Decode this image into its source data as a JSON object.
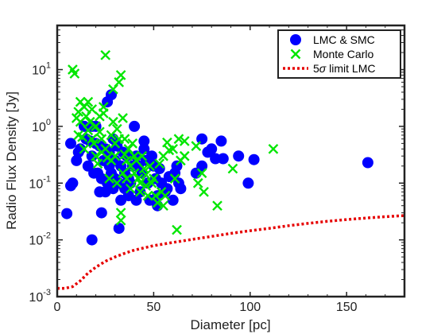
{
  "chart_data": {
    "type": "scatter",
    "xlabel": "Diameter [pc]",
    "ylabel": "Radio Flux Density [Jy]",
    "xlim": [
      0,
      180
    ],
    "ylim": [
      0.001,
      60
    ],
    "yscale": "log",
    "grid": false,
    "legend_position": "top-right",
    "x_ticks": [
      {
        "value": 0,
        "label": "0"
      },
      {
        "value": 50,
        "label": "50"
      },
      {
        "value": 100,
        "label": "100"
      },
      {
        "value": 150,
        "label": "150"
      }
    ],
    "y_ticks": [
      {
        "value": 0.001,
        "base": "10",
        "exp": "-3"
      },
      {
        "value": 0.01,
        "base": "10",
        "exp": "-2"
      },
      {
        "value": 0.1,
        "base": "10",
        "exp": "-1"
      },
      {
        "value": 1,
        "base": "10",
        "exp": "0"
      },
      {
        "value": 10,
        "base": "10",
        "exp": "1"
      }
    ],
    "legend": [
      {
        "label": "LMC & SMC",
        "marker": "circle",
        "color": "#0000ff"
      },
      {
        "label": "Monte Carlo",
        "marker": "x",
        "color": "#00e600"
      },
      {
        "label_prefix": "5",
        "label_symbol": "σ",
        "label_suffix": " limit LMC",
        "marker": "dotted-line",
        "color": "#e60000"
      }
    ],
    "series": [
      {
        "name": "LMC & SMC",
        "marker": "circle",
        "color": "#0000ff",
        "points": [
          [
            5,
            0.029
          ],
          [
            7,
            0.09
          ],
          [
            7,
            0.5
          ],
          [
            8,
            0.1
          ],
          [
            10,
            0.25
          ],
          [
            11,
            0.35
          ],
          [
            12,
            0.4
          ],
          [
            14,
            1.0
          ],
          [
            15,
            0.6
          ],
          [
            16,
            0.2
          ],
          [
            17,
            0.55
          ],
          [
            18,
            0.01
          ],
          [
            18,
            1.0
          ],
          [
            18,
            0.3
          ],
          [
            19,
            0.15
          ],
          [
            20,
            1.0
          ],
          [
            20,
            0.5
          ],
          [
            21,
            0.15
          ],
          [
            22,
            0.07
          ],
          [
            22,
            0.45
          ],
          [
            23,
            0.03
          ],
          [
            23,
            0.12
          ],
          [
            24,
            0.25
          ],
          [
            25,
            0.07
          ],
          [
            25,
            0.4
          ],
          [
            26,
            0.1
          ],
          [
            26,
            2.7
          ],
          [
            27,
            0.2
          ],
          [
            27,
            0.35
          ],
          [
            28,
            3.6
          ],
          [
            28,
            0.15
          ],
          [
            29,
            0.08
          ],
          [
            29,
            0.6
          ],
          [
            30,
            0.12
          ],
          [
            30,
            0.25
          ],
          [
            31,
            0.45
          ],
          [
            32,
            0.016
          ],
          [
            32,
            0.1
          ],
          [
            33,
            0.05
          ],
          [
            33,
            0.2
          ],
          [
            34,
            0.35
          ],
          [
            35,
            0.08
          ],
          [
            35,
            0.15
          ],
          [
            36,
            0.3
          ],
          [
            37,
            0.06
          ],
          [
            37,
            0.12
          ],
          [
            38,
            0.1
          ],
          [
            39,
            0.2
          ],
          [
            40,
            1.0
          ],
          [
            41,
            0.05
          ],
          [
            41,
            0.3
          ],
          [
            42,
            0.2
          ],
          [
            43,
            0.07
          ],
          [
            44,
            0.15
          ],
          [
            45,
            0.4
          ],
          [
            45,
            0.55
          ],
          [
            46,
            0.25
          ],
          [
            47,
            0.1
          ],
          [
            48,
            0.05
          ],
          [
            49,
            0.3
          ],
          [
            50,
            0.2
          ],
          [
            51,
            0.12
          ],
          [
            52,
            0.06
          ],
          [
            52,
            0.04
          ],
          [
            53,
            0.18
          ],
          [
            54,
            0.1
          ],
          [
            56,
            0.07
          ],
          [
            57,
            0.08
          ],
          [
            58,
            0.13
          ],
          [
            60,
            0.05
          ],
          [
            61,
            0.15
          ],
          [
            62,
            0.2
          ],
          [
            63,
            0.1
          ],
          [
            64,
            0.08
          ],
          [
            72,
            0.15
          ],
          [
            75,
            0.2
          ],
          [
            75,
            0.6
          ],
          [
            78,
            0.35
          ],
          [
            80,
            0.4
          ],
          [
            82,
            0.27
          ],
          [
            85,
            0.55
          ],
          [
            86,
            0.27
          ],
          [
            94,
            0.3
          ],
          [
            99,
            0.1
          ],
          [
            102,
            0.26
          ],
          [
            161,
            0.23
          ]
        ]
      },
      {
        "name": "Monte Carlo",
        "marker": "x",
        "color": "#00e600",
        "points": [
          [
            8,
            10.0
          ],
          [
            9,
            8.5
          ],
          [
            10,
            1.4
          ],
          [
            11,
            1.8
          ],
          [
            11,
            0.7
          ],
          [
            12,
            2.7
          ],
          [
            12,
            1.2
          ],
          [
            13,
            0.65
          ],
          [
            14,
            2.2
          ],
          [
            14,
            0.4
          ],
          [
            15,
            1.5
          ],
          [
            16,
            2.7
          ],
          [
            16,
            0.85
          ],
          [
            17,
            1.2
          ],
          [
            18,
            0.6
          ],
          [
            18,
            2.0
          ],
          [
            19,
            0.5
          ],
          [
            20,
            1.0
          ],
          [
            20,
            0.3
          ],
          [
            21,
            0.22
          ],
          [
            22,
            0.8
          ],
          [
            22,
            1.5
          ],
          [
            23,
            0.35
          ],
          [
            23,
            0.6
          ],
          [
            24,
            1.7
          ],
          [
            24,
            2.2
          ],
          [
            25,
            18.0
          ],
          [
            25,
            0.4
          ],
          [
            26,
            0.28
          ],
          [
            27,
            0.12
          ],
          [
            28,
            0.7
          ],
          [
            28,
            0.25
          ],
          [
            29,
            1.2
          ],
          [
            29,
            4.5
          ],
          [
            30,
            0.3
          ],
          [
            30,
            0.5
          ],
          [
            31,
            0.9
          ],
          [
            31,
            0.1
          ],
          [
            32,
            6.0
          ],
          [
            32,
            0.6
          ],
          [
            33,
            8.0
          ],
          [
            33,
            0.03
          ],
          [
            33,
            0.022
          ],
          [
            34,
            1.4
          ],
          [
            34,
            0.15
          ],
          [
            35,
            0.32
          ],
          [
            35,
            0.6
          ],
          [
            36,
            0.12
          ],
          [
            36,
            0.25
          ],
          [
            37,
            0.4
          ],
          [
            38,
            0.08
          ],
          [
            38,
            0.2
          ],
          [
            39,
            0.5
          ],
          [
            40,
            0.3
          ],
          [
            40,
            0.15
          ],
          [
            41,
            0.25
          ],
          [
            42,
            0.12
          ],
          [
            43,
            0.1
          ],
          [
            43,
            0.07
          ],
          [
            44,
            0.3
          ],
          [
            45,
            0.18
          ],
          [
            46,
            0.14
          ],
          [
            46,
            0.09
          ],
          [
            47,
            0.06
          ],
          [
            48,
            0.2
          ],
          [
            49,
            0.1
          ],
          [
            50,
            0.12
          ],
          [
            51,
            0.06
          ],
          [
            52,
            0.045
          ],
          [
            53,
            0.22
          ],
          [
            54,
            0.07
          ],
          [
            55,
            0.3
          ],
          [
            55,
            0.04
          ],
          [
            56,
            0.06
          ],
          [
            57,
            0.52
          ],
          [
            58,
            0.38
          ],
          [
            60,
            0.4
          ],
          [
            61,
            0.12
          ],
          [
            62,
            0.015
          ],
          [
            63,
            0.6
          ],
          [
            64,
            0.25
          ],
          [
            66,
            0.3
          ],
          [
            66,
            0.55
          ],
          [
            72,
            0.45
          ],
          [
            73,
            0.1
          ],
          [
            75,
            0.15
          ],
          [
            76,
            0.07
          ],
          [
            83,
            0.04
          ],
          [
            91,
            0.18
          ],
          [
            112,
            0.4
          ]
        ]
      },
      {
        "name": "5σ limit LMC",
        "marker": "dotted-line",
        "color": "#e60000",
        "points": [
          [
            0,
            0.0014
          ],
          [
            4,
            0.0014
          ],
          [
            8,
            0.0015
          ],
          [
            12,
            0.0019
          ],
          [
            16,
            0.0026
          ],
          [
            20,
            0.0033
          ],
          [
            25,
            0.0042
          ],
          [
            30,
            0.005
          ],
          [
            35,
            0.0058
          ],
          [
            40,
            0.0066
          ],
          [
            50,
            0.0079
          ],
          [
            60,
            0.009
          ],
          [
            70,
            0.0102
          ],
          [
            80,
            0.0115
          ],
          [
            90,
            0.013
          ],
          [
            100,
            0.0145
          ],
          [
            110,
            0.016
          ],
          [
            120,
            0.0178
          ],
          [
            130,
            0.0195
          ],
          [
            140,
            0.0212
          ],
          [
            150,
            0.0228
          ],
          [
            160,
            0.0242
          ],
          [
            170,
            0.0256
          ],
          [
            180,
            0.0268
          ]
        ]
      }
    ]
  }
}
